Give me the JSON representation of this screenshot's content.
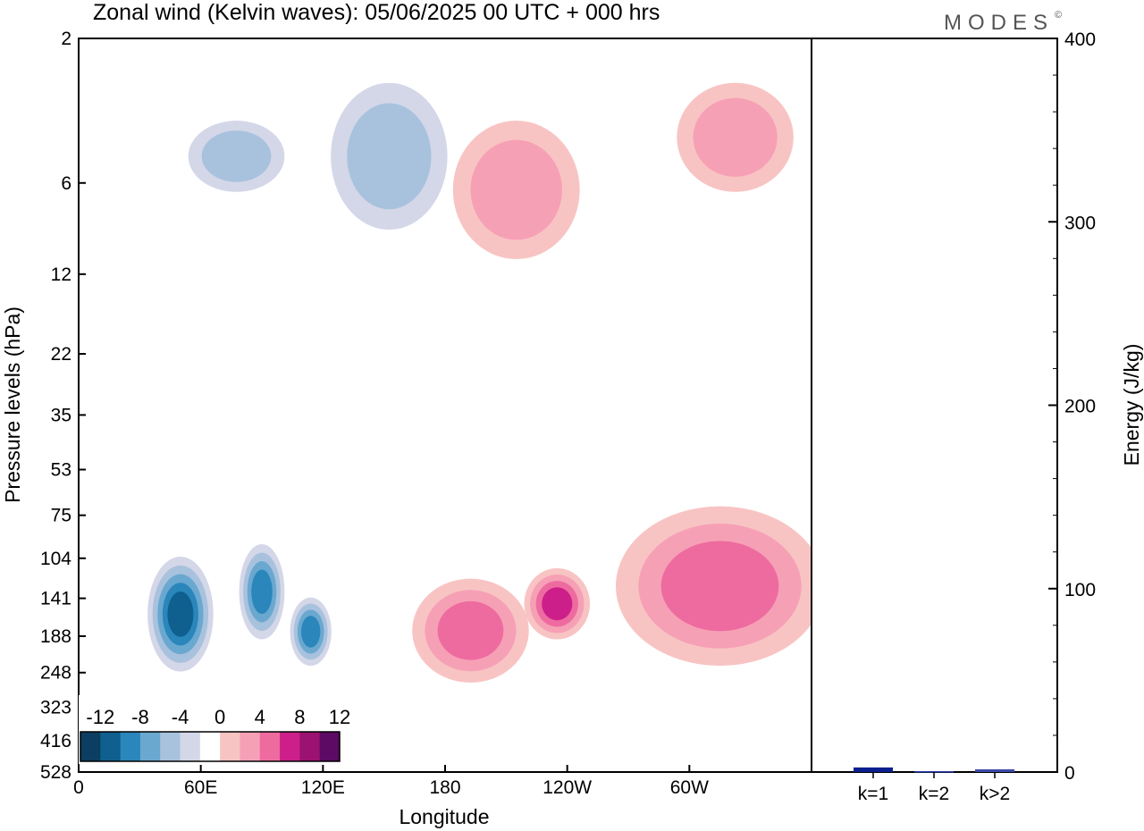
{
  "title": "Zonal wind (Kelvin waves):  05/06/2025  00 UTC  + 000 hrs",
  "logo": "MODES",
  "logo_mark": "©",
  "chart_data": [
    {
      "type": "heatmap",
      "title": "Zonal wind (Kelvin waves):  05/06/2025  00 UTC  + 000 hrs",
      "xlabel": "Longitude",
      "ylabel": "Pressure levels (hPa)",
      "x_ticks": [
        "0",
        "60E",
        "120E",
        "180",
        "120W",
        "60W"
      ],
      "x_tick_values": [
        0,
        60,
        120,
        180,
        240,
        300
      ],
      "xlim": [
        0,
        360
      ],
      "y_ticks": [
        2,
        6,
        12,
        22,
        35,
        53,
        75,
        104,
        141,
        188,
        248,
        323,
        416,
        528
      ],
      "y_scale": "log",
      "y_inverted": true,
      "ylim": [
        528,
        2
      ],
      "colorbar": {
        "labels": [
          "-12",
          "-8",
          "-4",
          "0",
          "4",
          "8",
          "12"
        ],
        "levels": [
          -14,
          -12,
          -10,
          -8,
          -6,
          -4,
          -2,
          2,
          4,
          6,
          8,
          10,
          12,
          14
        ],
        "colors": [
          "#0b3e60",
          "#0f5f8f",
          "#2a86bb",
          "#6aa8d0",
          "#a8c2de",
          "#d4d7e8",
          "#ffffff",
          "#f8c4c3",
          "#f6a0b6",
          "#ee6ba0",
          "#cc1f8a",
          "#9b1270",
          "#5c0a63"
        ],
        "placement": "bottom-left"
      },
      "features": [
        {
          "sign": "negative",
          "lon": [
            40,
            60
          ],
          "p": [
            110,
            230
          ],
          "min": -11
        },
        {
          "sign": "negative",
          "lon": [
            85,
            95
          ],
          "p": [
            100,
            180
          ],
          "min": -9
        },
        {
          "sign": "negative",
          "lon": [
            110,
            118
          ],
          "p": [
            150,
            220
          ],
          "min": -9
        },
        {
          "sign": "positive",
          "lon": [
            225,
            245
          ],
          "p": [
            120,
            180
          ],
          "max": 9
        },
        {
          "sign": "positive",
          "lon": [
            170,
            215
          ],
          "p": [
            130,
            250
          ],
          "max": 7
        },
        {
          "sign": "positive",
          "lon": [
            270,
            360
          ],
          "p": [
            75,
            220
          ],
          "max": 7
        },
        {
          "sign": "positive",
          "lon": [
            190,
            240
          ],
          "p": [
            4,
            10
          ],
          "max": 6
        },
        {
          "sign": "positive",
          "lon": [
            300,
            345
          ],
          "p": [
            3,
            6
          ],
          "max": 6
        },
        {
          "sign": "negative",
          "lon": [
            60,
            95
          ],
          "p": [
            4,
            6
          ],
          "min": -5
        },
        {
          "sign": "negative",
          "lon": [
            130,
            175
          ],
          "p": [
            3,
            8
          ],
          "min": -5
        }
      ]
    },
    {
      "type": "bar",
      "categories": [
        "k=1",
        "k=2",
        "k>2"
      ],
      "values": [
        2.5,
        0.5,
        1.5
      ],
      "ylabel": "Energy (J/kg)",
      "ylim": [
        0,
        400
      ],
      "y_ticks": [
        0,
        100,
        200,
        300,
        400
      ],
      "colors": [
        "#0b1f8f",
        "#2b3da8",
        "#3c4aa8"
      ]
    }
  ]
}
